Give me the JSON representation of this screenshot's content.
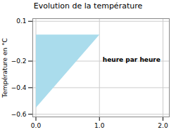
{
  "chart_data": {
    "type": "area",
    "title": "Evolution de la température",
    "ylabel": "Température en °C",
    "x": [
      0,
      0,
      1
    ],
    "values": [
      0,
      -0.55,
      0
    ],
    "color": "#aadcec",
    "xlim": [
      -0.05,
      2.1
    ],
    "xticks": [
      0,
      1,
      2
    ],
    "ylim": [
      -0.62,
      0.12
    ],
    "yticks": [
      0.1,
      -0.2,
      -0.4,
      -0.6
    ],
    "grid": true,
    "annotations": [
      {
        "text": "heure par heure",
        "x": 1.05,
        "y": -0.19
      }
    ]
  }
}
